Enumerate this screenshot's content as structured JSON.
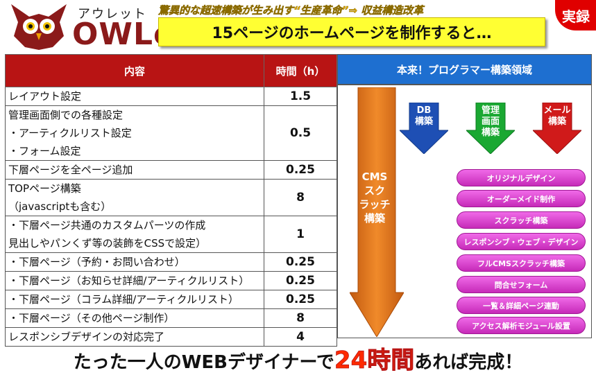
{
  "logo": {
    "kana": "アウレット",
    "word": "OWLet"
  },
  "tagline": "驚異的な超速構築が生み出す“生産革命”⇒ 収益構造改革",
  "banner": "15ページのホームページを制作すると…",
  "badge": "実録",
  "table": {
    "headers": [
      "内容",
      "時間（h）"
    ],
    "rows": [
      {
        "lines": [
          "レイアウト設定"
        ],
        "hours": "1.5"
      },
      {
        "lines": [
          "管理画面側での各種設定",
          "・アーティクルリスト設定",
          "・フォーム設定"
        ],
        "hours": "0.5"
      },
      {
        "lines": [
          "下層ページを全ページ追加"
        ],
        "hours": "0.25"
      },
      {
        "lines": [
          "TOPページ構築",
          "（javascriptも含む）"
        ],
        "hours": "8"
      },
      {
        "lines": [
          "・下層ページ共通のカスタムパーツの作成",
          "見出しやパンくず等の装飾をCSSで設定）"
        ],
        "hours": "1"
      },
      {
        "lines": [
          "・下層ページ（予約・お問い合わせ）"
        ],
        "hours": "0.25"
      },
      {
        "lines": [
          "・下層ページ（お知らせ詳細/アーティクルリスト）"
        ],
        "hours": "0.25"
      },
      {
        "lines": [
          "・下層ページ（コラム詳細/アーティクルリスト）"
        ],
        "hours": "0.25"
      },
      {
        "lines": [
          "・下層ページ（その他ページ制作）"
        ],
        "hours": "8"
      },
      {
        "lines": [
          "レスポンシブデザインの対応完了"
        ],
        "hours": "4"
      }
    ]
  },
  "right": {
    "header": "本来！プログラマー構築領域",
    "cms_arrow": [
      "CMS",
      "スク",
      "ラッチ",
      "構築"
    ],
    "arrows": [
      {
        "lines": [
          "DB",
          "構築"
        ],
        "color": "#1e4fb4"
      },
      {
        "lines": [
          "管理",
          "画面",
          "構築"
        ],
        "color": "#1aa832"
      },
      {
        "lines": [
          "メール",
          "構築"
        ],
        "color": "#d01a1a"
      }
    ],
    "pills": [
      "オリジナルデザイン",
      "オーダーメイド制作",
      "スクラッチ構築",
      "レスポンシブ・ウェブ・デザイン",
      "フルCMSスクラッチ構築",
      "問合せフォーム",
      "一覧＆詳細ページ連動",
      "アクセス解析モジュール設置"
    ]
  },
  "bottom": {
    "pre": "たった一人のWEBデザイナーで",
    "em": "24時間",
    "post": "あれば完成！"
  },
  "colors": {
    "header_red": "#b81414",
    "header_blue": "#1e6fd0",
    "arrow_orange": "#e2761c",
    "pill": "#d83acc"
  }
}
